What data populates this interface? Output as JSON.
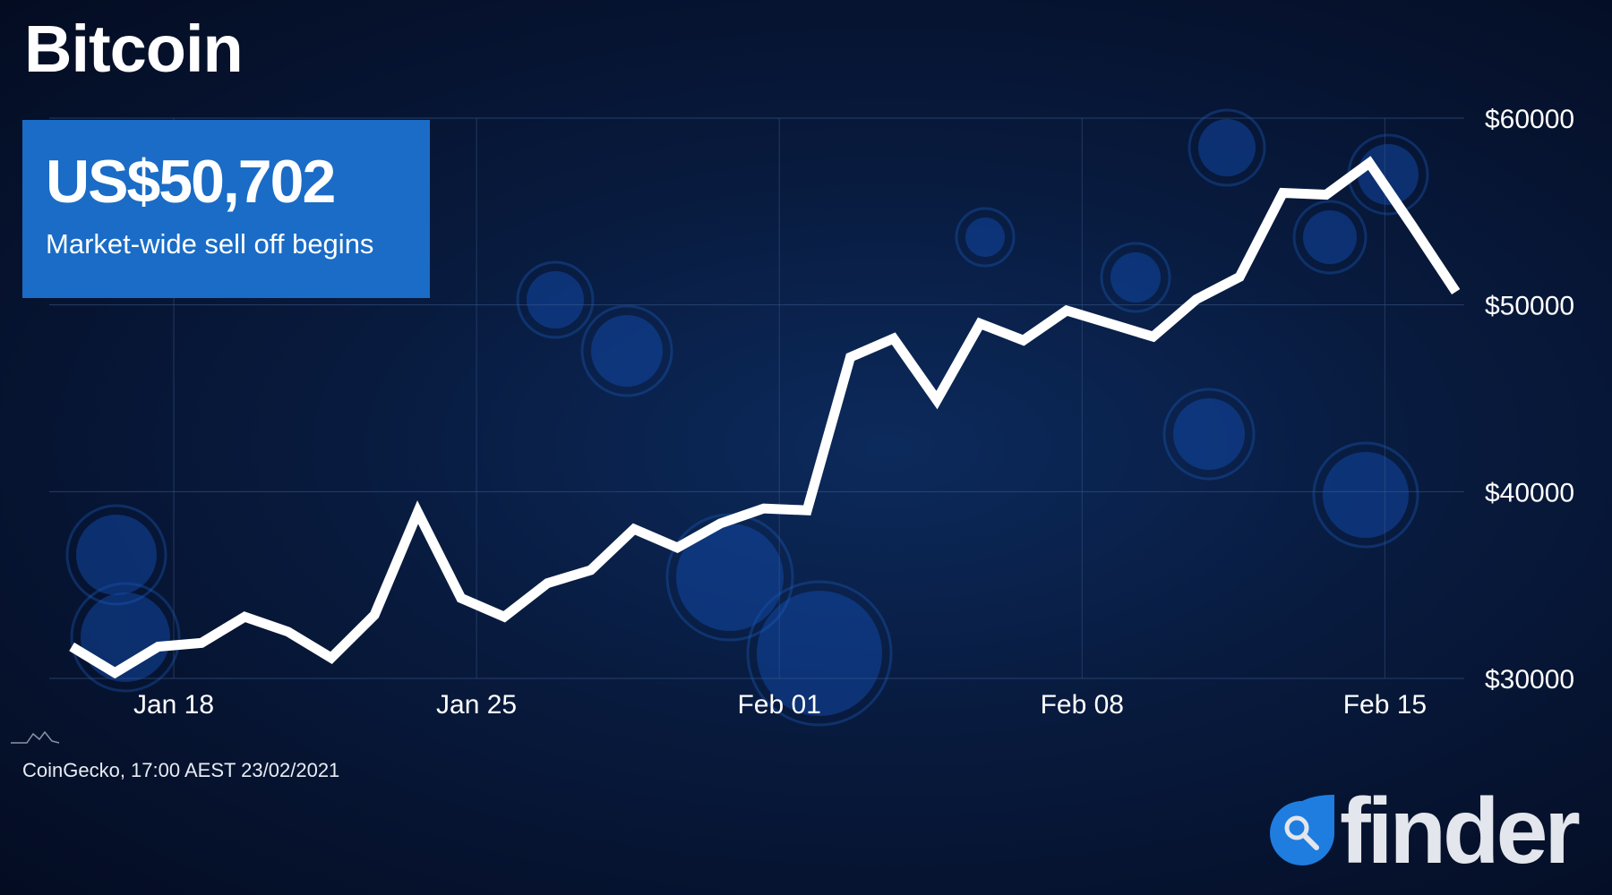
{
  "header": {
    "title": "Bitcoin"
  },
  "callout": {
    "price": "US$50,702",
    "note": "Market-wide sell off begins"
  },
  "footer": {
    "source": "CoinGecko, 17:00 AEST 23/02/2021",
    "brand": "finder"
  },
  "colors": {
    "line": "#ffffff",
    "callout_bg": "#1a6cc6",
    "brand_blue": "#1f7de0",
    "background": "#081a3d"
  },
  "icons": {
    "source_logo": "mountain-chart-icon",
    "brand_logo": "magnifier-drop-icon"
  },
  "chart_data": {
    "type": "line",
    "title": "Bitcoin",
    "xlabel": "",
    "ylabel": "",
    "ylim": [
      30000,
      60000
    ],
    "yticks": [
      30000,
      40000,
      50000,
      60000
    ],
    "ytick_labels": [
      "$30000",
      "$40000",
      "$50000",
      "$60000"
    ],
    "xticks": [
      "2021-01-18",
      "2021-01-25",
      "2021-02-01",
      "2021-02-08",
      "2021-02-15"
    ],
    "xtick_labels": [
      "Jan 18",
      "Jan 25",
      "Feb 01",
      "Feb 08",
      "Feb 15"
    ],
    "grid": true,
    "x": [
      "2021-01-16",
      "2021-01-17",
      "2021-01-18",
      "2021-01-19",
      "2021-01-20",
      "2021-01-21",
      "2021-01-22",
      "2021-01-23",
      "2021-01-24",
      "2021-01-25",
      "2021-01-26",
      "2021-01-27",
      "2021-01-28",
      "2021-01-29",
      "2021-01-30",
      "2021-01-31",
      "2021-02-01",
      "2021-02-02",
      "2021-02-03",
      "2021-02-04",
      "2021-02-05",
      "2021-02-06",
      "2021-02-07",
      "2021-02-08",
      "2021-02-09",
      "2021-02-10",
      "2021-02-11",
      "2021-02-12",
      "2021-02-13",
      "2021-02-14",
      "2021-02-15",
      "2021-02-16",
      "2021-02-17"
    ],
    "values": [
      31700,
      30300,
      31700,
      31900,
      33300,
      32500,
      31100,
      33400,
      38900,
      34300,
      33300,
      35100,
      35800,
      38000,
      37000,
      38300,
      39100,
      39000,
      47200,
      48200,
      44900,
      49000,
      48100,
      49700,
      49000,
      48300,
      50300,
      51500,
      56000,
      55900,
      57600,
      54200,
      50702
    ]
  }
}
